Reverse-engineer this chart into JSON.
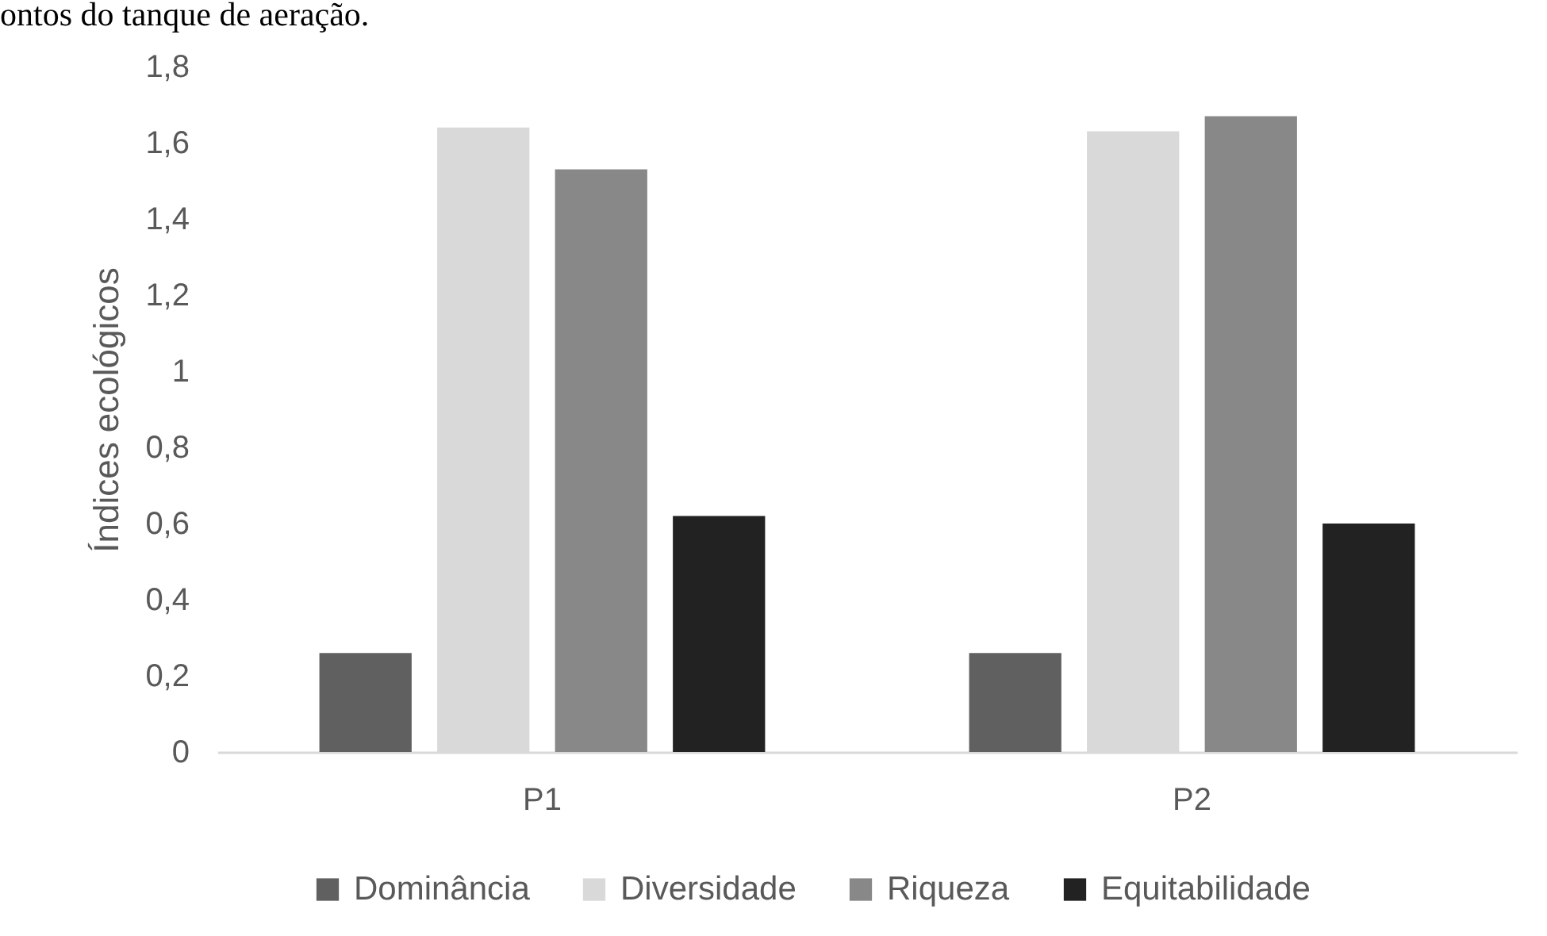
{
  "chart_data": {
    "type": "bar",
    "annotations": [
      "ontos do tanque de aeração."
    ],
    "ylabel": "Índices ecológicos",
    "categories": [
      "P1",
      "P2"
    ],
    "series": [
      {
        "name": "Dominância",
        "color": "#606060",
        "values": [
          0.26,
          0.26
        ]
      },
      {
        "name": "Diversidade",
        "color": "#d9d9d9",
        "values": [
          1.64,
          1.63
        ]
      },
      {
        "name": "Riqueza",
        "color": "#888888",
        "values": [
          1.53,
          1.67
        ]
      },
      {
        "name": "Equitabilidade",
        "color": "#222222",
        "values": [
          0.62,
          0.6
        ]
      }
    ],
    "ylim": [
      0,
      1.8
    ],
    "yticks": [
      0,
      {
        "value": 0.2,
        "label": "0,2"
      },
      {
        "value": 0.4,
        "label": "0,4"
      },
      {
        "value": 0.6,
        "label": "0,6"
      },
      {
        "value": 0.8,
        "label": "0,8"
      },
      1,
      {
        "value": 1.2,
        "label": "1,2"
      },
      {
        "value": 1.4,
        "label": "1,4"
      },
      {
        "value": 1.6,
        "label": "1,6"
      },
      {
        "value": 1.8,
        "label": "1,8"
      }
    ],
    "legend": "bottom"
  }
}
